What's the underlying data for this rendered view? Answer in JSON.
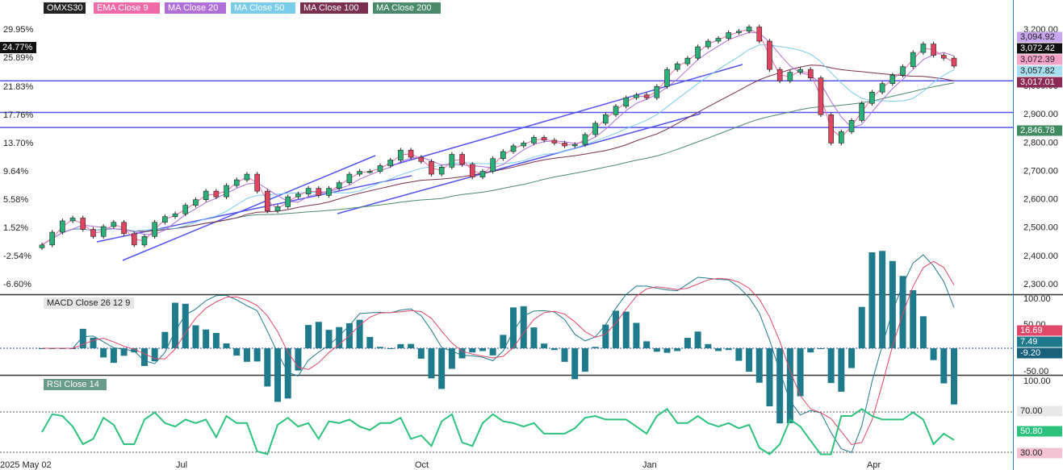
{
  "legend": {
    "symbol": "OMXS30",
    "items": [
      {
        "label": "EMA  Close 9",
        "color": "#f06aa8",
        "text_color": "#ffffff"
      },
      {
        "label": "MA  Close 20",
        "color": "#b06fd8",
        "text_color": "#ffffff"
      },
      {
        "label": "MA  Close 50",
        "color": "#79cdea",
        "text_color": "#ffffff"
      },
      {
        "label": "MA  Close 100",
        "color": "#7a2f4f",
        "text_color": "#ffffff"
      },
      {
        "label": "MA  Close 200",
        "color": "#4a8a6a",
        "text_color": "#ffffff"
      }
    ]
  },
  "price_axis": {
    "ticks": [
      "3,200.00",
      "3,100.00",
      "3,000.00",
      "2,900.00",
      "2,800.00",
      "2,700.00",
      "2,600.00",
      "2,500.00",
      "2,400.00",
      "2,300.00"
    ]
  },
  "percent_axis": {
    "ticks": [
      "29.95%",
      "25.89%",
      "21.83%",
      "17.76%",
      "13.70%",
      "9.64%",
      "5.58%",
      "1.52%",
      "-2.54%",
      "-6.60%"
    ],
    "current": "24.77%"
  },
  "price_tags": [
    {
      "label": "3,094.92",
      "bg": "#c9a6ee",
      "fg": "#222222"
    },
    {
      "label": "3,072.42",
      "bg": "#111111",
      "fg": "#ffffff"
    },
    {
      "label": "3,072.39",
      "bg": "#f5a4c8",
      "fg": "#222222"
    },
    {
      "label": "3,057.82",
      "bg": "#a8def2",
      "fg": "#222222"
    },
    {
      "label": "3,017.01",
      "bg": "#8c2a55",
      "fg": "#ffffff"
    },
    {
      "label": "2,846.78",
      "bg": "#3f8a5e",
      "fg": "#ffffff"
    }
  ],
  "macd": {
    "label": "MACD  Close 26 12 9",
    "axis": [
      "100.00",
      "50.00",
      "-50.00"
    ],
    "tags": [
      {
        "label": "16.69",
        "bg": "#e0486a",
        "fg": "#ffffff"
      },
      {
        "label": "7.49",
        "bg": "#1f7a8c",
        "fg": "#ffffff"
      },
      {
        "label": "-9.20",
        "bg": "#17607a",
        "fg": "#ffffff"
      }
    ]
  },
  "rsi": {
    "label": "RSI  Close 14",
    "axis": [
      "100.00",
      "70.00",
      "30.00"
    ],
    "tags": [
      {
        "label": "70.00",
        "bg": "#e8e8e8",
        "fg": "#222222"
      },
      {
        "label": "50.80",
        "bg": "#2cc27e",
        "fg": "#ffffff"
      },
      {
        "label": "30.00",
        "bg": "#f3c3d3",
        "fg": "#222222"
      }
    ]
  },
  "time_axis": [
    "2025 May 02",
    "Jul",
    "Oct",
    "Jan",
    "Apr"
  ],
  "colors": {
    "bull": "#2cb07a",
    "bear": "#e0455f",
    "trendline": "#5555ee",
    "macd_line": "#1f7a8c",
    "signal_line": "#e0486a",
    "histogram": "#1f7a8c",
    "rsi_line": "#2cc27e"
  },
  "chart_data": {
    "type": "candlestick",
    "symbol": "OMXS30",
    "ylim": [
      2280,
      3240
    ],
    "horizontal_levels": [
      3020,
      2908,
      2855
    ],
    "last_close": 3072.42,
    "series_last_values": {
      "EMA Close 9": 3072.39,
      "MA Close 20": 3094.92,
      "MA Close 50": 3057.82,
      "MA Close 100": 3017.01,
      "MA Close 200": 2846.78
    },
    "macd_last": {
      "macd": 7.49,
      "signal": 16.69,
      "histogram": -9.2
    },
    "rsi_last": 50.8,
    "close_series": [
      2440,
      2485,
      2525,
      2535,
      2495,
      2470,
      2505,
      2520,
      2480,
      2440,
      2470,
      2520,
      2540,
      2550,
      2580,
      2600,
      2630,
      2610,
      2650,
      2670,
      2690,
      2630,
      2560,
      2575,
      2610,
      2620,
      2640,
      2615,
      2640,
      2660,
      2690,
      2700,
      2700,
      2720,
      2740,
      2775,
      2750,
      2735,
      2690,
      2715,
      2760,
      2725,
      2680,
      2700,
      2745,
      2770,
      2790,
      2800,
      2820,
      2810,
      2800,
      2790,
      2795,
      2830,
      2870,
      2900,
      2930,
      2960,
      2970,
      2960,
      3000,
      3060,
      3080,
      3100,
      3140,
      3160,
      3170,
      3190,
      3195,
      3210,
      3160,
      3060,
      3020,
      3050,
      3060,
      3030,
      2900,
      2800,
      2840,
      2880,
      2940,
      2980,
      3010,
      3040,
      3070,
      3120,
      3150,
      3110,
      3100,
      3072
    ]
  }
}
